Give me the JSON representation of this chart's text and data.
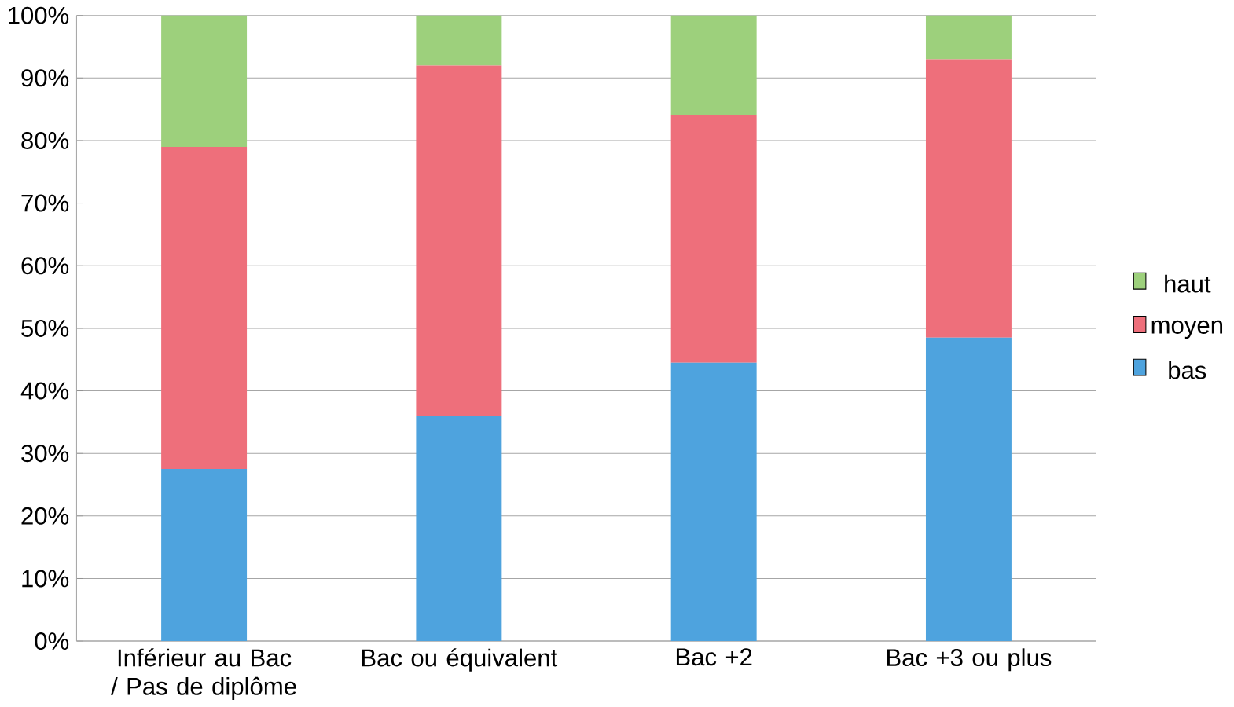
{
  "chart_data": {
    "type": "bar",
    "stacked": true,
    "categories": [
      "Inférieur au Bac / Pas de diplôme",
      "Bac ou équivalent",
      "Bac +2",
      "Bac +3 ou plus"
    ],
    "series": [
      {
        "name": "bas",
        "color": "#4ea3de",
        "values": [
          27.5,
          36,
          44.5,
          48.5
        ]
      },
      {
        "name": "moyen",
        "color": "#ee6f7b",
        "values": [
          51.5,
          56,
          39.5,
          44.5
        ]
      },
      {
        "name": "haut",
        "color": "#9dd07c",
        "values": [
          21,
          8,
          16,
          7
        ]
      }
    ],
    "ylim": [
      0,
      100
    ],
    "yticks": [
      {
        "value": 0,
        "label": "0%"
      },
      {
        "value": 10,
        "label": "10%"
      },
      {
        "value": 20,
        "label": "20%"
      },
      {
        "value": 30,
        "label": "30%"
      },
      {
        "value": 40,
        "label": "40%"
      },
      {
        "value": 50,
        "label": "50%"
      },
      {
        "value": 60,
        "label": "60%"
      },
      {
        "value": 70,
        "label": "70%"
      },
      {
        "value": 80,
        "label": "80%"
      },
      {
        "value": 90,
        "label": "90%"
      },
      {
        "value": 100,
        "label": "100%"
      }
    ],
    "grid": "y",
    "legend": "right"
  }
}
